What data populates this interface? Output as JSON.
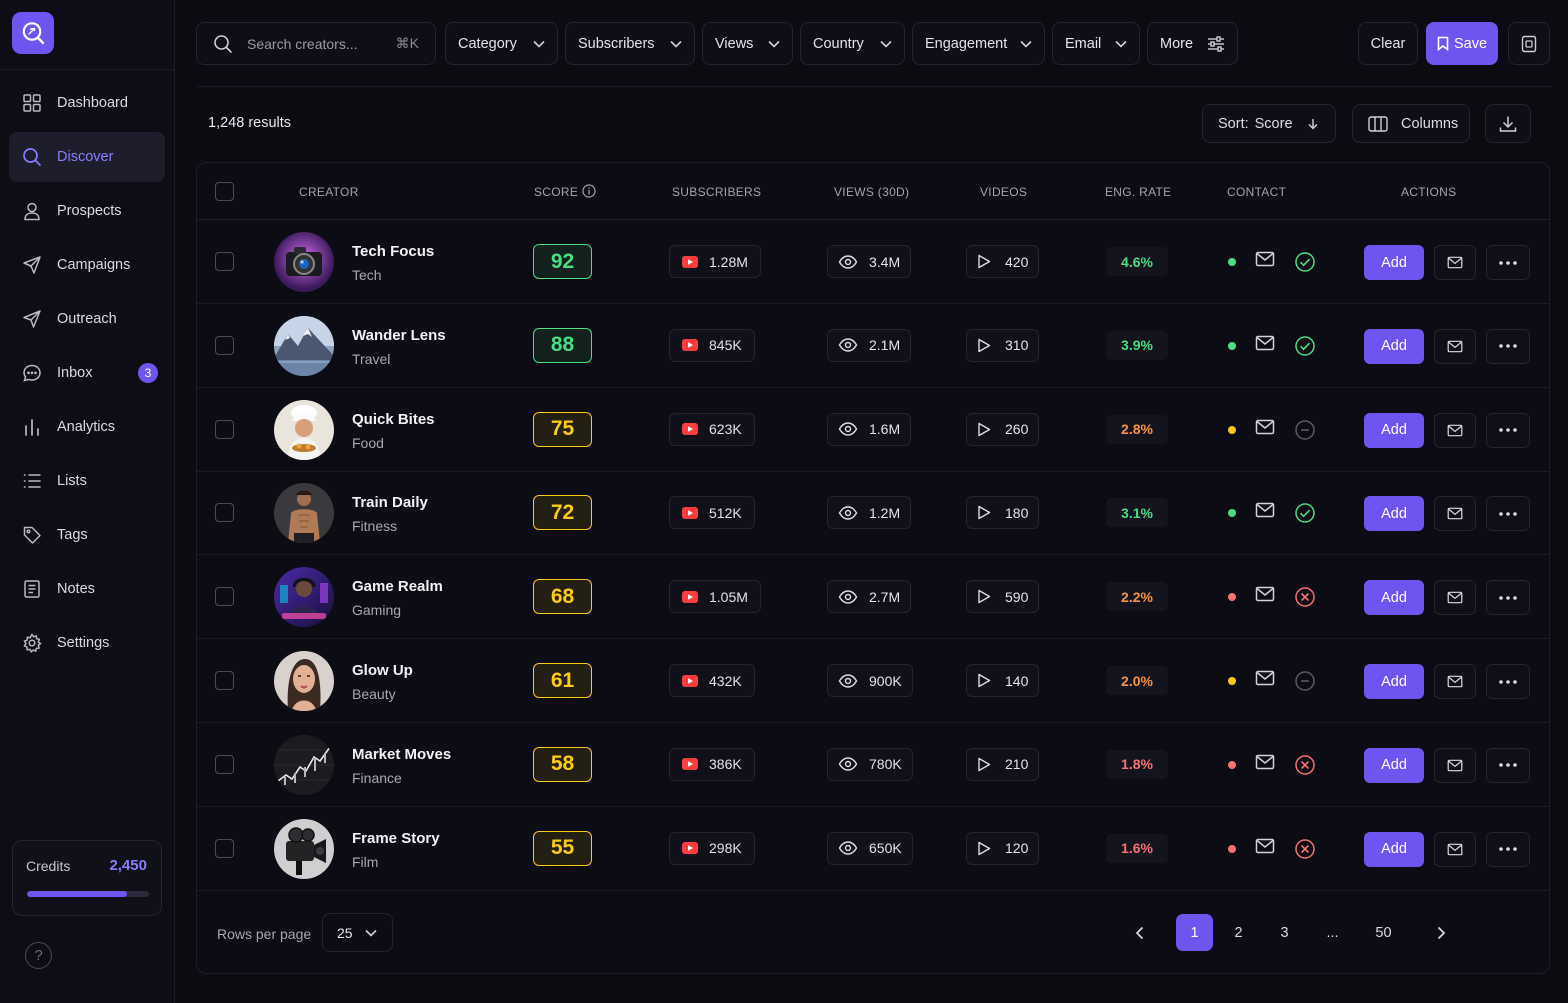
{
  "colors": {
    "accent": "#6d55f0",
    "accent_text": "#8d7cff",
    "green": "#4ade80",
    "yellow": "#facc15",
    "orange": "#fb923c",
    "red": "#f87171"
  },
  "sidebar": {
    "items": [
      {
        "label": "Dashboard",
        "icon": "grid-icon"
      },
      {
        "label": "Discover",
        "icon": "search-icon",
        "active": true
      },
      {
        "label": "Prospects",
        "icon": "user-icon"
      },
      {
        "label": "Campaigns",
        "icon": "rocket-icon"
      },
      {
        "label": "Outreach",
        "icon": "send-icon"
      },
      {
        "label": "Inbox",
        "icon": "chat-icon",
        "badge": "3"
      },
      {
        "label": "Analytics",
        "icon": "bar-chart-icon"
      },
      {
        "label": "Lists",
        "icon": "list-icon"
      },
      {
        "label": "Tags",
        "icon": "tag-icon"
      },
      {
        "label": "Notes",
        "icon": "note-icon"
      },
      {
        "label": "Settings",
        "icon": "gear-icon"
      }
    ],
    "credits": {
      "label": "Credits",
      "value": "2,450",
      "fill_fraction": 0.82
    },
    "help": "?"
  },
  "toolbar": {
    "search_placeholder": "Search creators...",
    "search_shortcut": "⌘K",
    "filters": [
      "Category",
      "Subscribers",
      "Views",
      "Country",
      "Engagement",
      "Email"
    ],
    "more": "More",
    "clear": "Clear",
    "save": "Save"
  },
  "results": {
    "count_label": "1,248 results",
    "sort_label": "Sort:",
    "sort_value": "Score",
    "columns": "Columns"
  },
  "table": {
    "headers": {
      "creator": "CREATOR",
      "score": "SCORE",
      "subscribers": "SUBSCRIBERS",
      "views": "VIEWS (30D)",
      "videos": "VIDEOS",
      "eng_rate": "ENG. RATE",
      "contact": "CONTACT",
      "actions": "ACTIONS"
    },
    "add_label": "Add",
    "rows": [
      {
        "name": "Tech Focus",
        "category": "Tech",
        "score": "92",
        "score_level": "green",
        "subscribers": "1.28M",
        "views": "3.4M",
        "videos": "420",
        "eng_rate": "4.6%",
        "eng_level": "green",
        "contact_dot": "green",
        "contact_status": "check"
      },
      {
        "name": "Wander Lens",
        "category": "Travel",
        "score": "88",
        "score_level": "green",
        "subscribers": "845K",
        "views": "2.1M",
        "videos": "310",
        "eng_rate": "3.9%",
        "eng_level": "green",
        "contact_dot": "green",
        "contact_status": "check"
      },
      {
        "name": "Quick Bites",
        "category": "Food",
        "score": "75",
        "score_level": "orange",
        "subscribers": "623K",
        "views": "1.6M",
        "videos": "260",
        "eng_rate": "2.8%",
        "eng_level": "orange",
        "contact_dot": "yellow",
        "contact_status": "pending"
      },
      {
        "name": "Train Daily",
        "category": "Fitness",
        "score": "72",
        "score_level": "orange",
        "subscribers": "512K",
        "views": "1.2M",
        "videos": "180",
        "eng_rate": "3.1%",
        "eng_level": "green",
        "contact_dot": "green",
        "contact_status": "check"
      },
      {
        "name": "Game Realm",
        "category": "Gaming",
        "score": "68",
        "score_level": "orange",
        "subscribers": "1.05M",
        "views": "2.7M",
        "videos": "590",
        "eng_rate": "2.2%",
        "eng_level": "orange",
        "contact_dot": "red",
        "contact_status": "x"
      },
      {
        "name": "Glow Up",
        "category": "Beauty",
        "score": "61",
        "score_level": "orange",
        "subscribers": "432K",
        "views": "900K",
        "videos": "140",
        "eng_rate": "2.0%",
        "eng_level": "orange",
        "contact_dot": "yellow",
        "contact_status": "pending"
      },
      {
        "name": "Market Moves",
        "category": "Finance",
        "score": "58",
        "score_level": "orange",
        "subscribers": "386K",
        "views": "780K",
        "videos": "210",
        "eng_rate": "1.8%",
        "eng_level": "red",
        "contact_dot": "red",
        "contact_status": "x"
      },
      {
        "name": "Frame Story",
        "category": "Film",
        "score": "55",
        "score_level": "orange",
        "subscribers": "298K",
        "views": "650K",
        "videos": "120",
        "eng_rate": "1.6%",
        "eng_level": "red",
        "contact_dot": "red",
        "contact_status": "x"
      }
    ]
  },
  "footer": {
    "rows_per_page_label": "Rows per page",
    "rows_per_page": "25",
    "pages": [
      "1",
      "2",
      "3",
      "...",
      "50"
    ],
    "current_page": "1"
  }
}
